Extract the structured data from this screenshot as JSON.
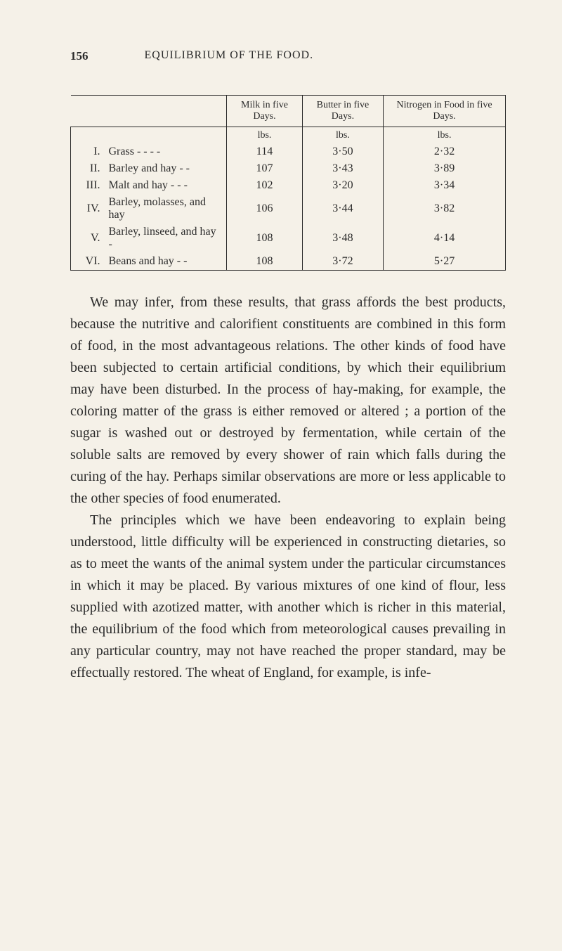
{
  "header": {
    "page_number": "156",
    "title": "EQUILIBRIUM OF THE FOOD."
  },
  "table": {
    "columns": {
      "col1": "Milk in five Days.",
      "col2": "Butter in five Days.",
      "col3": "Nitrogen in Food in five Days."
    },
    "units": {
      "u1": "lbs.",
      "u2": "lbs.",
      "u3": "lbs."
    },
    "rows": [
      {
        "num": "I.",
        "label": "Grass  -      -      -      -",
        "v1": "114",
        "v2": "3·50",
        "v3": "2·32"
      },
      {
        "num": "II.",
        "label": "Barley and hay     -     -",
        "v1": "107",
        "v2": "3·43",
        "v3": "3·89"
      },
      {
        "num": "III.",
        "label": "Malt and hay -     -     -",
        "v1": "102",
        "v2": "3·20",
        "v3": "3·34"
      },
      {
        "num": "IV.",
        "label": "Barley, molasses, and hay",
        "v1": "106",
        "v2": "3·44",
        "v3": "3·82"
      },
      {
        "num": "V.",
        "label": "Barley, linseed, and hay -",
        "v1": "108",
        "v2": "3·48",
        "v3": "4·14"
      },
      {
        "num": "VI.",
        "label": "Beans and hay       -     -",
        "v1": "108",
        "v2": "3·72",
        "v3": "5·27"
      }
    ]
  },
  "paragraphs": {
    "p1": "We may infer, from these results, that grass affords the best products, because the nutritive and calorifient constituents are combined in this form of food, in the most advantageous relations. The other kinds of food have been subjected to certain artificial conditions, by which their equilibrium may have been disturbed. In the process of hay-making, for example, the coloring matter of the grass is either removed or altered ; a portion of the sugar is washed out or destroyed by fermentation, while certain of the soluble salts are removed by every shower of rain which falls during the curing of the hay. Perhaps similar observations are more or less applicable to the other species of food enumerated.",
    "p2": "The principles which we have been endeavoring to explain being understood, little difficulty will be experienced in constructing dietaries, so as to meet the wants of the animal system under the particular circumstances in which it may be placed. By various mixtures of one kind of flour, less supplied with azotized matter, with another which is richer in this material, the equilibrium of the food which from meteorological causes prevailing in any particular country, may not have reached the proper standard, may be effectually restored. The wheat of England, for example, is infe-"
  },
  "style": {
    "background_color": "#f5f1e8",
    "text_color": "#2a2a2a",
    "border_color": "#2a2a2a",
    "body_fontsize": 20,
    "header_fontsize": 17,
    "table_fontsize": 16
  }
}
